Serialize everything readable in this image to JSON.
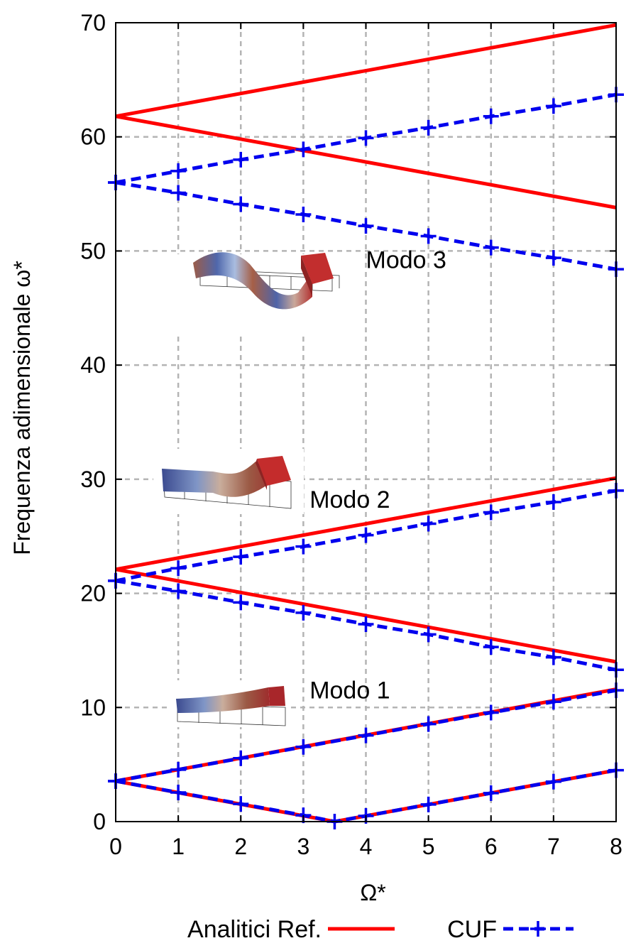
{
  "chart_data": {
    "type": "line",
    "xlabel": "Ω*",
    "ylabel": "Frequenza adimensionale ω*",
    "xlim": [
      0,
      8
    ],
    "ylim": [
      0,
      70
    ],
    "xticks": [
      0,
      1,
      2,
      3,
      4,
      5,
      6,
      7,
      8
    ],
    "yticks": [
      0,
      10,
      20,
      30,
      40,
      50,
      60,
      70
    ],
    "grid": true,
    "legend_position": "bottom",
    "legend": [
      {
        "label": "Analitici Ref.",
        "style": "solid",
        "color": "#ff0000"
      },
      {
        "label": "CUF",
        "style": "dashed-plus",
        "color": "#0000ee"
      }
    ],
    "annotations": [
      {
        "text": "Modo 3",
        "x": 4.0,
        "y": 48.5
      },
      {
        "text": "Modo 2",
        "x": 3.1,
        "y": 27.5
      },
      {
        "text": "Modo 1",
        "x": 3.1,
        "y": 10.8
      }
    ],
    "series": [
      {
        "group": "Analitici Ref.",
        "x": [
          0,
          8
        ],
        "y": [
          61.8,
          69.8
        ]
      },
      {
        "group": "Analitici Ref.",
        "x": [
          0,
          8
        ],
        "y": [
          61.8,
          53.8
        ]
      },
      {
        "group": "Analitici Ref.",
        "x": [
          0,
          8
        ],
        "y": [
          22.1,
          30.1
        ]
      },
      {
        "group": "Analitici Ref.",
        "x": [
          0,
          8
        ],
        "y": [
          22.1,
          14.0
        ]
      },
      {
        "group": "Analitici Ref.",
        "x": [
          0,
          8
        ],
        "y": [
          3.55,
          11.6
        ]
      },
      {
        "group": "Analitici Ref.",
        "x": [
          0,
          3.5,
          8
        ],
        "y": [
          3.55,
          0,
          4.5
        ]
      },
      {
        "group": "CUF",
        "x": [
          0,
          1,
          2,
          3,
          4,
          5,
          6,
          7,
          8
        ],
        "y": [
          56.0,
          57.0,
          58.0,
          58.9,
          59.9,
          60.8,
          61.8,
          62.7,
          63.7
        ]
      },
      {
        "group": "CUF",
        "x": [
          0,
          1,
          2,
          3,
          4,
          5,
          6,
          7,
          8
        ],
        "y": [
          56.0,
          55.1,
          54.1,
          53.2,
          52.2,
          51.3,
          50.3,
          49.4,
          48.4
        ]
      },
      {
        "group": "CUF",
        "x": [
          0,
          1,
          2,
          3,
          4,
          5,
          6,
          7,
          8
        ],
        "y": [
          21.1,
          22.2,
          23.2,
          24.1,
          25.1,
          26.1,
          27.1,
          28.0,
          29.0
        ]
      },
      {
        "group": "CUF",
        "x": [
          0,
          1,
          2,
          3,
          4,
          5,
          6,
          7,
          8
        ],
        "y": [
          21.1,
          20.2,
          19.2,
          18.3,
          17.3,
          16.4,
          15.3,
          14.4,
          13.3
        ]
      },
      {
        "group": "CUF",
        "x": [
          0,
          1,
          2,
          3,
          4,
          5,
          6,
          7,
          8
        ],
        "y": [
          3.55,
          4.55,
          5.55,
          6.55,
          7.55,
          8.55,
          9.55,
          10.5,
          11.5
        ]
      },
      {
        "group": "CUF",
        "x": [
          0,
          1,
          2,
          3,
          3.5,
          4,
          5,
          6,
          7,
          8
        ],
        "y": [
          3.55,
          2.55,
          1.55,
          0.55,
          0,
          0.5,
          1.5,
          2.5,
          3.5,
          4.5
        ]
      }
    ]
  }
}
